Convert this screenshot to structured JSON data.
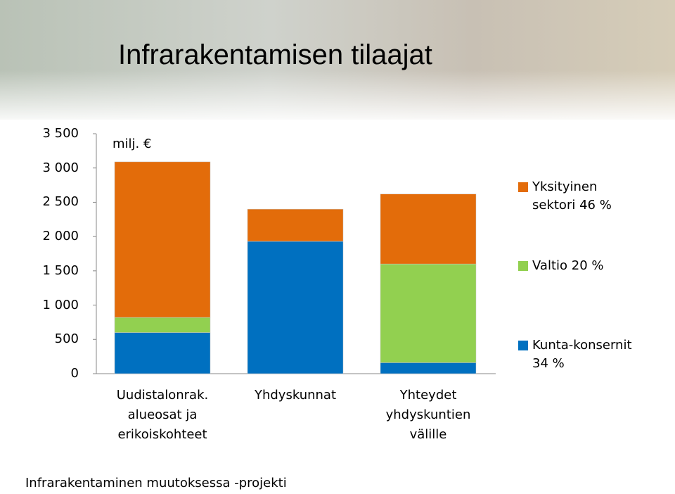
{
  "title": "Infrarakentamisen tilaajat",
  "footer": "Infrarakentaminen muutoksessa -projekti",
  "chart_data": {
    "type": "stacked-bar",
    "unit_label": "milj. €",
    "categories": [
      "Uudistalonrak.\nalueosat ja\nerikoiskohteet",
      "Yhdyskunnat",
      "Yhteydet\nyhdyskuntien\nvälille"
    ],
    "series": [
      {
        "name": "Kunta-konsernit 34 %",
        "color": "#0070c0",
        "values": [
          600,
          1930,
          160
        ]
      },
      {
        "name": "Valtio 20 %",
        "color": "#92d050",
        "values": [
          220,
          0,
          1440
        ]
      },
      {
        "name": "Yksityinen sektori 46 %",
        "color": "#e36c0a",
        "values": [
          2270,
          470,
          1020
        ]
      }
    ],
    "ylim": [
      0,
      3500
    ],
    "yticks": [
      0,
      500,
      {
        "value": 1000,
        "label": "1 000"
      },
      {
        "value": 1500,
        "label": "1 500"
      },
      {
        "value": 2000,
        "label": "2 000"
      },
      {
        "value": 2500,
        "label": "2 500"
      },
      {
        "value": 3000,
        "label": "3 000"
      },
      {
        "value": 3500,
        "label": "3 500"
      }
    ],
    "legend": "right"
  }
}
